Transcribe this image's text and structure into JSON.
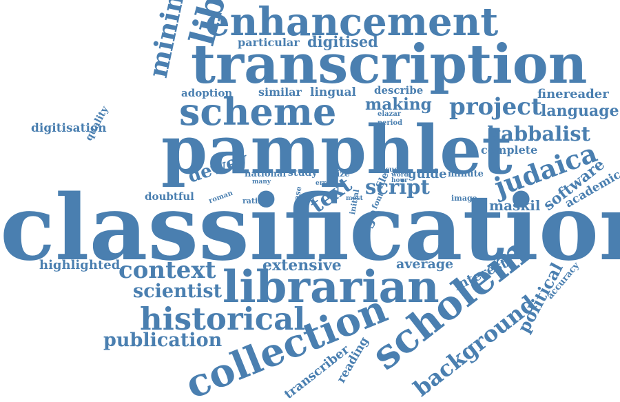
{
  "color": "#4a7fb0",
  "words": {
    "enhancement": "enhancement",
    "transcription": "transcription",
    "particular": "particular",
    "digitised": "digitised",
    "libraries": "libraries",
    "minimum": "minimum",
    "scheme": "scheme",
    "pamphlet": "pamphlet",
    "adoption": "adoption",
    "similar": "similar",
    "lingual": "lingual",
    "describe": "describe",
    "making": "making",
    "elazar": "elazar",
    "period": "period",
    "project": "project",
    "finereader": "finereader",
    "language": "language",
    "kabbalist": "kabbalist",
    "complete": "complete",
    "digitisation": "digitisation",
    "quality": "quality",
    "judaica": "judaica",
    "software": "software",
    "academic": "academic",
    "maskil": "maskil",
    "national": "national",
    "study": "study",
    "size": "size",
    "time": "time",
    "focus": "focus",
    "word": "word",
    "hour": "hour",
    "guide": "guide",
    "minute": "minute",
    "many": "many",
    "dewey": "dewey",
    "doubtful": "doubtful",
    "roman": "roman",
    "error": "error",
    "text": "text",
    "file": "file",
    "script": "script",
    "image": "image",
    "rating": "rating",
    "case": "case",
    "arial": "arial",
    "most": "most",
    "font": "font",
    "page": "page",
    "classification": "classification",
    "highlighted": "highlighted",
    "context": "context",
    "extensive": "extensive",
    "average": "average",
    "interest": "interest",
    "accuracy": "accuracy",
    "political": "political",
    "scientist": "scientist",
    "librarian": "librarian",
    "scholem": "scholem",
    "historical": "historical",
    "publication": "publication",
    "collection": "collection",
    "background": "background",
    "initial": "initial",
    "reading": "reading",
    "transcriber": "transcriber"
  }
}
